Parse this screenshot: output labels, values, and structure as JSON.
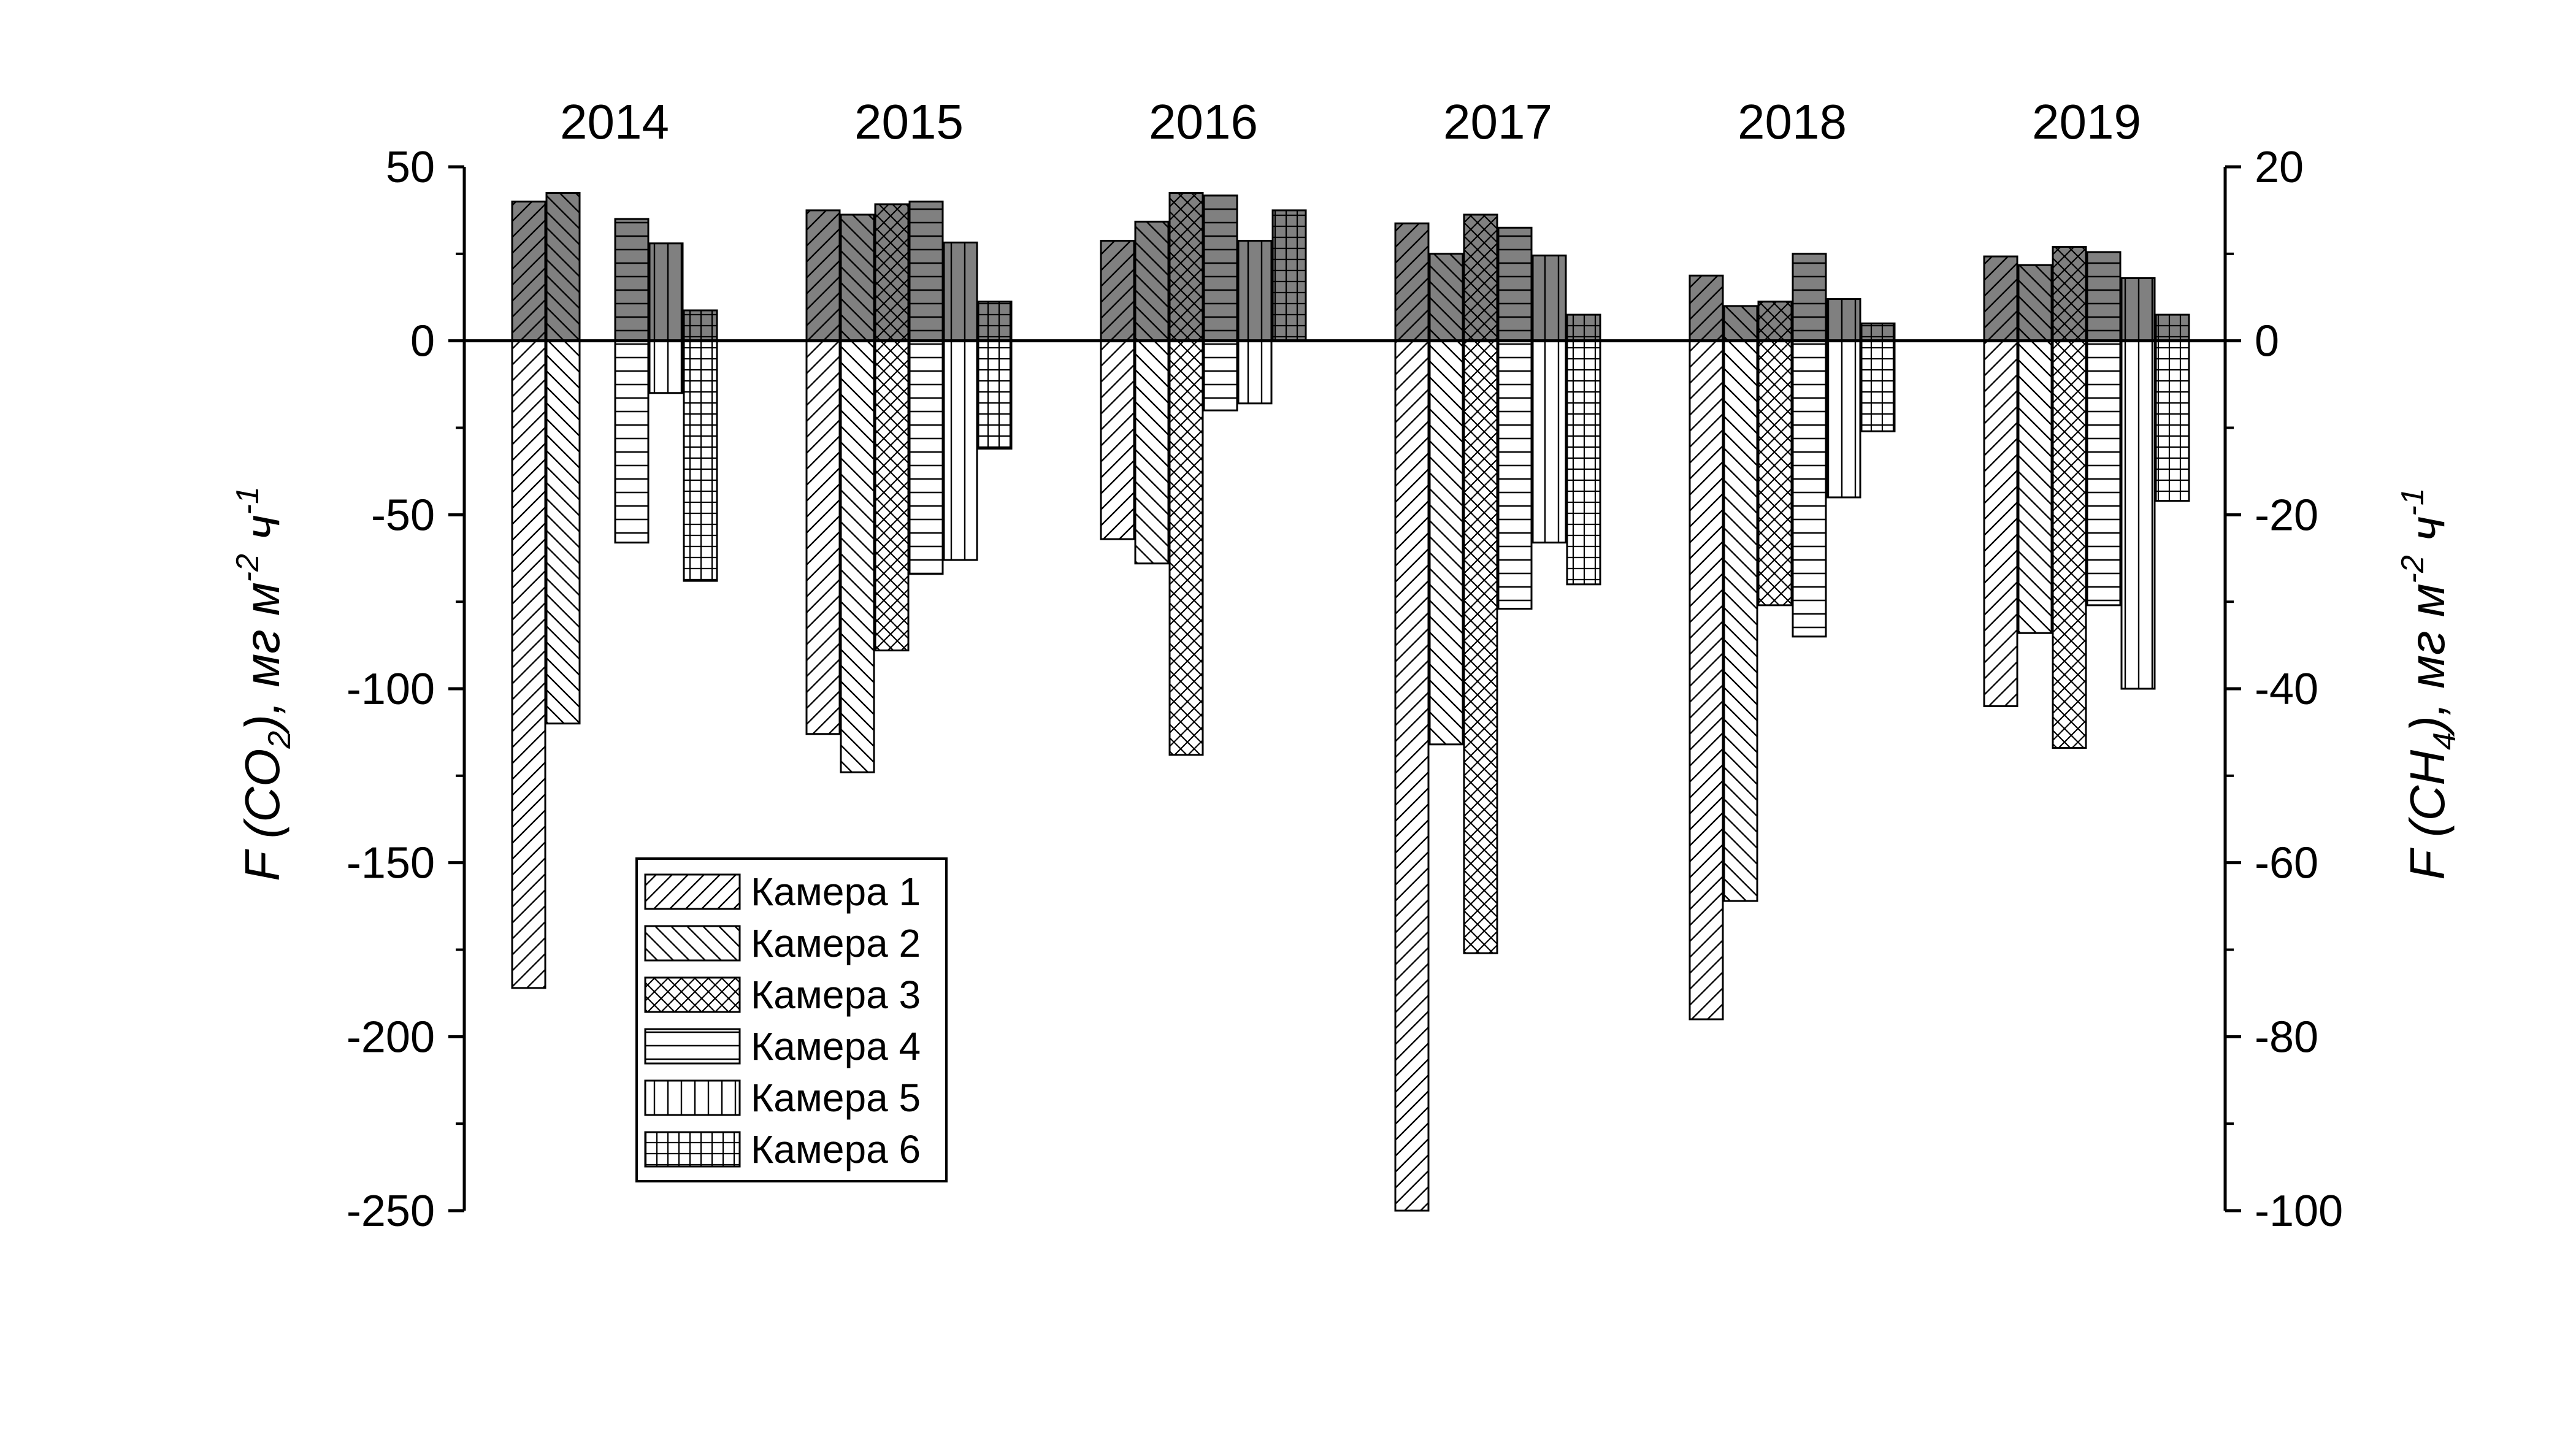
{
  "chart_data": {
    "type": "bar",
    "categories": [
      "2014",
      "2015",
      "2016",
      "2017",
      "2018",
      "2019"
    ],
    "left_axis": {
      "title_parts": [
        "F (CO",
        "2",
        "), мг м",
        "-2",
        " ч",
        "-1"
      ],
      "ylim": [
        -250,
        50
      ],
      "ticks": [
        "50",
        "0",
        "-50",
        "-100",
        "-150",
        "-200",
        "-250"
      ]
    },
    "right_axis": {
      "title_parts": [
        "F (CH",
        "4",
        "), мг м",
        "-2",
        " ч",
        "-1"
      ],
      "ylim": [
        -100,
        20
      ],
      "ticks": [
        "20",
        "0",
        "-20",
        "-40",
        "-60",
        "-80",
        "-100"
      ]
    },
    "legend_position": "inside-lower-left",
    "bar_colors": {
      "positive_fill": "#808080",
      "negative_fill": "#ffffff",
      "stroke": "#000000"
    },
    "series": [
      {
        "name": "Камера 1",
        "pattern": "diag-right",
        "co2": [
          -186,
          -113,
          -57,
          -250,
          -195,
          -105
        ],
        "ch4": [
          16,
          15,
          11.5,
          13.5,
          7.5,
          9.7
        ]
      },
      {
        "name": "Камера 2",
        "pattern": "diag-left",
        "co2": [
          -110,
          -124,
          -64,
          -116,
          -161,
          -84
        ],
        "ch4": [
          17,
          14.5,
          13.7,
          10,
          4,
          8.7
        ]
      },
      {
        "name": "Камера 3",
        "pattern": "crosshatch",
        "co2": [
          null,
          -89,
          -119,
          -176,
          -76,
          -117
        ],
        "ch4": [
          null,
          15.7,
          17,
          14.5,
          4.5,
          10.8
        ]
      },
      {
        "name": "Камера 4",
        "pattern": "horizontal",
        "co2": [
          -58,
          -67,
          -20,
          -77,
          -85,
          -76
        ],
        "ch4": [
          14,
          16,
          16.7,
          13,
          10,
          10.2
        ]
      },
      {
        "name": "Камера 5",
        "pattern": "vertical",
        "co2": [
          -15,
          -63,
          -18,
          -58,
          -45,
          -100
        ],
        "ch4": [
          11.2,
          11.3,
          11.5,
          9.8,
          4.8,
          7.2
        ]
      },
      {
        "name": "Камера 6",
        "pattern": "grid",
        "co2": [
          -69,
          -31,
          null,
          -70,
          -26,
          -46
        ],
        "ch4": [
          3.5,
          4.5,
          15,
          3,
          2,
          3
        ]
      }
    ]
  }
}
